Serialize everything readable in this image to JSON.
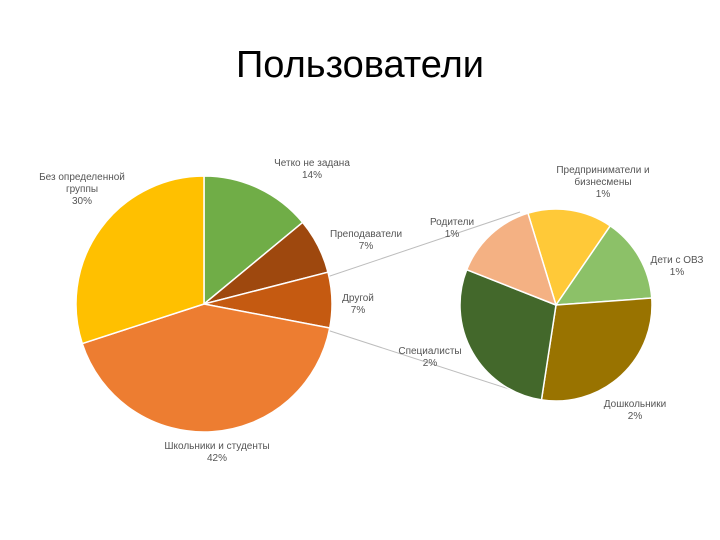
{
  "title": "Пользователи",
  "chart_data": [
    {
      "type": "pie",
      "slices": [
        {
          "label": "Четко не задана",
          "value": 14,
          "value_text": "14%",
          "color": "#70ad47"
        },
        {
          "label": "Преподаватели",
          "value": 7,
          "value_text": "7%",
          "color": "#9e480e"
        },
        {
          "label": "Другой",
          "value": 7,
          "value_text": "7%",
          "color": "#c55a11"
        },
        {
          "label": "Школьники и студенты",
          "value": 42,
          "value_text": "42%",
          "color": "#ed7d31"
        },
        {
          "label": "Без определенной группы",
          "value": 30,
          "value_text": "30%",
          "color": "#ffc000"
        }
      ]
    },
    {
      "type": "pie",
      "slices": [
        {
          "label": "Предприниматели и бизнесмены",
          "value": 1,
          "value_text": "1%",
          "color": "#ffc938"
        },
        {
          "label": "Дети с ОВЗ",
          "value": 1,
          "value_text": "1%",
          "color": "#8cc168"
        },
        {
          "label": "Дошкольники",
          "value": 2,
          "value_text": "2%",
          "color": "#997300"
        },
        {
          "label": "Специалисты",
          "value": 2,
          "value_text": "2%",
          "color": "#43682b"
        },
        {
          "label": "Родители",
          "value": 1,
          "value_text": "1%",
          "color": "#f4b183"
        }
      ]
    }
  ]
}
